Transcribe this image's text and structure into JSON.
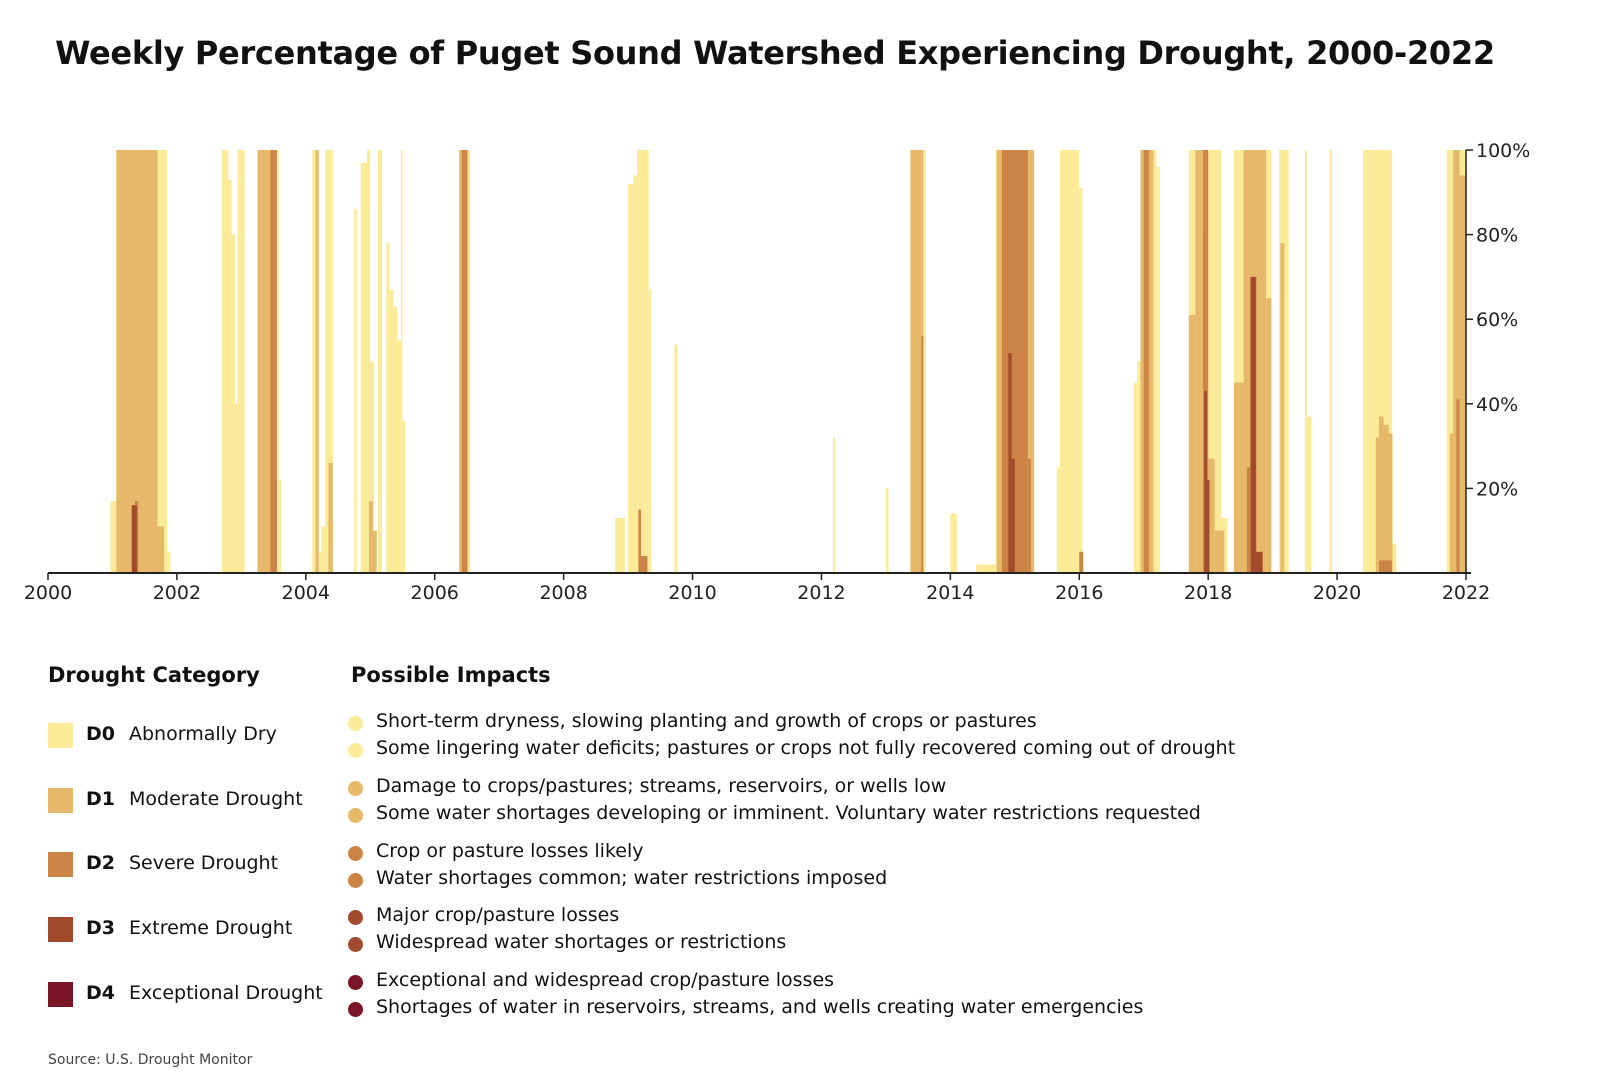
{
  "title": "Weekly Percentage of Puget Sound Watershed Experiencing Drought, 2000-2022",
  "source": "Source: U.S. Drought Monitor",
  "legend": {
    "heading": "Drought Category",
    "impacts_heading": "Possible Impacts",
    "categories": [
      {
        "code": "D0",
        "name": "Abnormally Dry",
        "color": "#fbeb99",
        "impacts": [
          "Short-term dryness, slowing planting and growth of crops or pastures",
          "Some lingering water deficits; pastures or crops not fully recovered coming out of drought"
        ]
      },
      {
        "code": "D1",
        "name": "Moderate Drought",
        "color": "#e6b96a",
        "impacts": [
          "Damage to crops/pastures; streams, reservoirs, or wells low",
          "Some water shortages developing or imminent. Voluntary water restrictions requested"
        ]
      },
      {
        "code": "D2",
        "name": "Severe Drought",
        "color": "#cc8446",
        "impacts": [
          "Crop or pasture losses likely",
          "Water shortages common; water restrictions imposed"
        ]
      },
      {
        "code": "D3",
        "name": "Extreme Drought",
        "color": "#a14a2e",
        "impacts": [
          "Major crop/pasture losses",
          "Widespread water shortages or restrictions"
        ]
      },
      {
        "code": "D4",
        "name": "Exceptional Drought",
        "color": "#7a1426",
        "impacts": [
          "Exceptional and widespread crop/pasture losses",
          "Shortages of water in reservoirs, streams, and wells creating water emergencies"
        ]
      }
    ]
  },
  "chart_data": {
    "type": "area",
    "title": "Weekly Percentage of Puget Sound Watershed Experiencing Drought, 2000-2022",
    "x_unit": "year",
    "xlim": [
      2000,
      2022
    ],
    "ylim": [
      0,
      100
    ],
    "y_position": "right",
    "x_ticks": [
      "2000",
      "2002",
      "2004",
      "2006",
      "2008",
      "2010",
      "2012",
      "2014",
      "2016",
      "2018",
      "2020",
      "2022"
    ],
    "y_ticks": [
      "20%",
      "40%",
      "60%",
      "80%",
      "100%"
    ],
    "y_tick_values": [
      20,
      40,
      60,
      80,
      100
    ],
    "series": [
      {
        "name": "D0",
        "color": "#fbeb99",
        "segments": [
          {
            "start": 2000.97,
            "end": 2001.06,
            "value": 17
          },
          {
            "start": 2001.06,
            "end": 2001.85,
            "value": 100
          },
          {
            "start": 2001.85,
            "end": 2001.9,
            "value": 5
          },
          {
            "start": 2002.7,
            "end": 2002.8,
            "value": 100
          },
          {
            "start": 2002.8,
            "end": 2002.85,
            "value": 93
          },
          {
            "start": 2002.85,
            "end": 2002.9,
            "value": 80
          },
          {
            "start": 2002.9,
            "end": 2002.94,
            "value": 40
          },
          {
            "start": 2002.94,
            "end": 2003.05,
            "value": 100
          },
          {
            "start": 2003.25,
            "end": 2003.58,
            "value": 100
          },
          {
            "start": 2003.58,
            "end": 2003.62,
            "value": 22
          },
          {
            "start": 2004.1,
            "end": 2004.2,
            "value": 100
          },
          {
            "start": 2004.2,
            "end": 2004.24,
            "value": 5
          },
          {
            "start": 2004.24,
            "end": 2004.3,
            "value": 11
          },
          {
            "start": 2004.3,
            "end": 2004.42,
            "value": 100
          },
          {
            "start": 2004.75,
            "end": 2004.79,
            "value": 86
          },
          {
            "start": 2004.85,
            "end": 2004.95,
            "value": 97
          },
          {
            "start": 2004.95,
            "end": 2005.0,
            "value": 100
          },
          {
            "start": 2005.0,
            "end": 2005.06,
            "value": 50
          },
          {
            "start": 2005.12,
            "end": 2005.18,
            "value": 100
          },
          {
            "start": 2005.25,
            "end": 2005.3,
            "value": 78
          },
          {
            "start": 2005.3,
            "end": 2005.36,
            "value": 67
          },
          {
            "start": 2005.36,
            "end": 2005.42,
            "value": 63
          },
          {
            "start": 2005.42,
            "end": 2005.48,
            "value": 55
          },
          {
            "start": 2005.48,
            "end": 2005.54,
            "value": 36
          },
          {
            "start": 2005.48,
            "end": 2005.5,
            "value": 100
          },
          {
            "start": 2006.38,
            "end": 2006.55,
            "value": 100
          },
          {
            "start": 2008.8,
            "end": 2008.95,
            "value": 13
          },
          {
            "start": 2009.0,
            "end": 2009.08,
            "value": 92
          },
          {
            "start": 2009.08,
            "end": 2009.14,
            "value": 94
          },
          {
            "start": 2009.14,
            "end": 2009.32,
            "value": 100
          },
          {
            "start": 2009.32,
            "end": 2009.36,
            "value": 67
          },
          {
            "start": 2009.72,
            "end": 2009.77,
            "value": 54
          },
          {
            "start": 2012.18,
            "end": 2012.21,
            "value": 32
          },
          {
            "start": 2013.0,
            "end": 2013.04,
            "value": 20
          },
          {
            "start": 2013.38,
            "end": 2013.62,
            "value": 100
          },
          {
            "start": 2014.0,
            "end": 2014.1,
            "value": 14
          },
          {
            "start": 2014.4,
            "end": 2014.7,
            "value": 2
          },
          {
            "start": 2014.7,
            "end": 2015.3,
            "value": 100
          },
          {
            "start": 2015.65,
            "end": 2015.7,
            "value": 25
          },
          {
            "start": 2015.7,
            "end": 2016.0,
            "value": 100
          },
          {
            "start": 2016.0,
            "end": 2016.05,
            "value": 91
          },
          {
            "start": 2016.85,
            "end": 2016.9,
            "value": 45
          },
          {
            "start": 2016.9,
            "end": 2016.95,
            "value": 50
          },
          {
            "start": 2016.95,
            "end": 2017.2,
            "value": 100
          },
          {
            "start": 2017.2,
            "end": 2017.25,
            "value": 96
          },
          {
            "start": 2017.7,
            "end": 2018.2,
            "value": 100
          },
          {
            "start": 2018.2,
            "end": 2018.3,
            "value": 13
          },
          {
            "start": 2018.4,
            "end": 2018.98,
            "value": 100
          },
          {
            "start": 2019.1,
            "end": 2019.25,
            "value": 100
          },
          {
            "start": 2019.5,
            "end": 2019.53,
            "value": 100
          },
          {
            "start": 2019.53,
            "end": 2019.6,
            "value": 37
          },
          {
            "start": 2019.88,
            "end": 2019.92,
            "value": 100
          },
          {
            "start": 2020.4,
            "end": 2020.85,
            "value": 100
          },
          {
            "start": 2020.85,
            "end": 2020.92,
            "value": 7
          },
          {
            "start": 2021.7,
            "end": 2022.0,
            "value": 100
          }
        ]
      },
      {
        "name": "D1",
        "color": "#e6b96a",
        "segments": [
          {
            "start": 2001.06,
            "end": 2001.7,
            "value": 100
          },
          {
            "start": 2001.7,
            "end": 2001.8,
            "value": 11
          },
          {
            "start": 2003.25,
            "end": 2003.55,
            "value": 100
          },
          {
            "start": 2004.15,
            "end": 2004.2,
            "value": 100
          },
          {
            "start": 2004.35,
            "end": 2004.42,
            "value": 26
          },
          {
            "start": 2004.98,
            "end": 2005.04,
            "value": 17
          },
          {
            "start": 2005.04,
            "end": 2005.1,
            "value": 10
          },
          {
            "start": 2006.38,
            "end": 2006.52,
            "value": 100
          },
          {
            "start": 2009.16,
            "end": 2009.3,
            "value": 4
          },
          {
            "start": 2013.38,
            "end": 2013.58,
            "value": 100
          },
          {
            "start": 2014.72,
            "end": 2015.3,
            "value": 100
          },
          {
            "start": 2016.0,
            "end": 2016.06,
            "value": 5
          },
          {
            "start": 2016.95,
            "end": 2017.15,
            "value": 100
          },
          {
            "start": 2017.7,
            "end": 2017.8,
            "value": 61
          },
          {
            "start": 2017.8,
            "end": 2017.92,
            "value": 100
          },
          {
            "start": 2017.92,
            "end": 2018.0,
            "value": 80
          },
          {
            "start": 2018.0,
            "end": 2018.1,
            "value": 27
          },
          {
            "start": 2018.1,
            "end": 2018.25,
            "value": 10
          },
          {
            "start": 2018.4,
            "end": 2018.55,
            "value": 45
          },
          {
            "start": 2018.55,
            "end": 2018.9,
            "value": 100
          },
          {
            "start": 2018.9,
            "end": 2018.98,
            "value": 65
          },
          {
            "start": 2019.12,
            "end": 2019.18,
            "value": 78
          },
          {
            "start": 2020.6,
            "end": 2020.65,
            "value": 32
          },
          {
            "start": 2020.65,
            "end": 2020.72,
            "value": 37
          },
          {
            "start": 2020.72,
            "end": 2020.8,
            "value": 35
          },
          {
            "start": 2020.8,
            "end": 2020.86,
            "value": 33
          },
          {
            "start": 2021.75,
            "end": 2021.8,
            "value": 33
          },
          {
            "start": 2021.8,
            "end": 2021.9,
            "value": 100
          },
          {
            "start": 2021.9,
            "end": 2022.0,
            "value": 94
          }
        ]
      },
      {
        "name": "D2",
        "color": "#cc8446",
        "segments": [
          {
            "start": 2001.3,
            "end": 2001.35,
            "value": 16
          },
          {
            "start": 2001.35,
            "end": 2001.4,
            "value": 17
          },
          {
            "start": 2003.45,
            "end": 2003.55,
            "value": 100
          },
          {
            "start": 2006.42,
            "end": 2006.5,
            "value": 100
          },
          {
            "start": 2009.16,
            "end": 2009.2,
            "value": 15
          },
          {
            "start": 2009.2,
            "end": 2009.3,
            "value": 4
          },
          {
            "start": 2013.55,
            "end": 2013.58,
            "value": 56
          },
          {
            "start": 2014.8,
            "end": 2015.2,
            "value": 100
          },
          {
            "start": 2015.2,
            "end": 2015.25,
            "value": 27
          },
          {
            "start": 2016.0,
            "end": 2016.06,
            "value": 5
          },
          {
            "start": 2017.0,
            "end": 2017.08,
            "value": 100
          },
          {
            "start": 2017.92,
            "end": 2018.0,
            "value": 100
          },
          {
            "start": 2018.6,
            "end": 2018.65,
            "value": 25
          },
          {
            "start": 2018.65,
            "end": 2018.75,
            "value": 70
          },
          {
            "start": 2018.75,
            "end": 2018.85,
            "value": 5
          },
          {
            "start": 2020.65,
            "end": 2020.85,
            "value": 3
          },
          {
            "start": 2021.85,
            "end": 2021.9,
            "value": 41
          }
        ]
      },
      {
        "name": "D3",
        "color": "#a14a2e",
        "segments": [
          {
            "start": 2001.3,
            "end": 2001.38,
            "value": 16
          },
          {
            "start": 2014.9,
            "end": 2014.95,
            "value": 52
          },
          {
            "start": 2014.95,
            "end": 2015.0,
            "value": 27
          },
          {
            "start": 2017.94,
            "end": 2017.98,
            "value": 43
          },
          {
            "start": 2017.98,
            "end": 2018.02,
            "value": 22
          },
          {
            "start": 2018.66,
            "end": 2018.74,
            "value": 70
          },
          {
            "start": 2018.74,
            "end": 2018.84,
            "value": 5
          }
        ]
      },
      {
        "name": "D4",
        "color": "#7a1426",
        "segments": []
      }
    ]
  }
}
